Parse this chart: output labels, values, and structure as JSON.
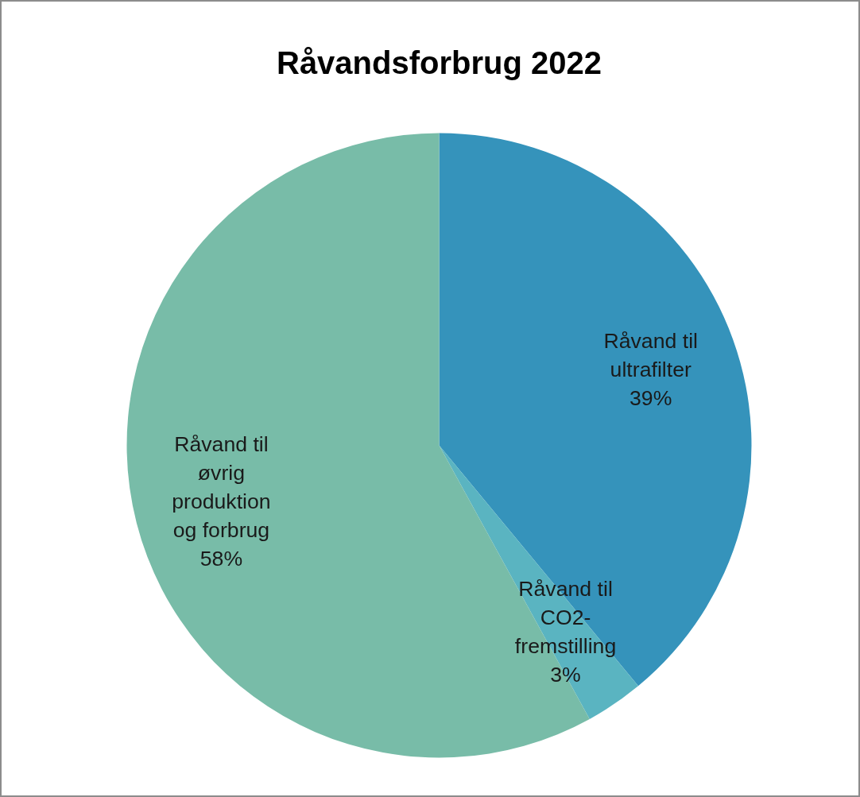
{
  "chart_data": {
    "type": "pie",
    "title": "Råvandsforbrug 2022",
    "categories": [
      "Råvand til ultrafilter",
      "Råvand til CO2-fremstilling",
      "Råvand til øvrig produktion og forbrug"
    ],
    "values": [
      39,
      3,
      58
    ],
    "colors": [
      "#3593bb",
      "#5ab4c1",
      "#78bca8"
    ],
    "value_labels": [
      "39%",
      "3%",
      "58%"
    ],
    "legend": false
  }
}
